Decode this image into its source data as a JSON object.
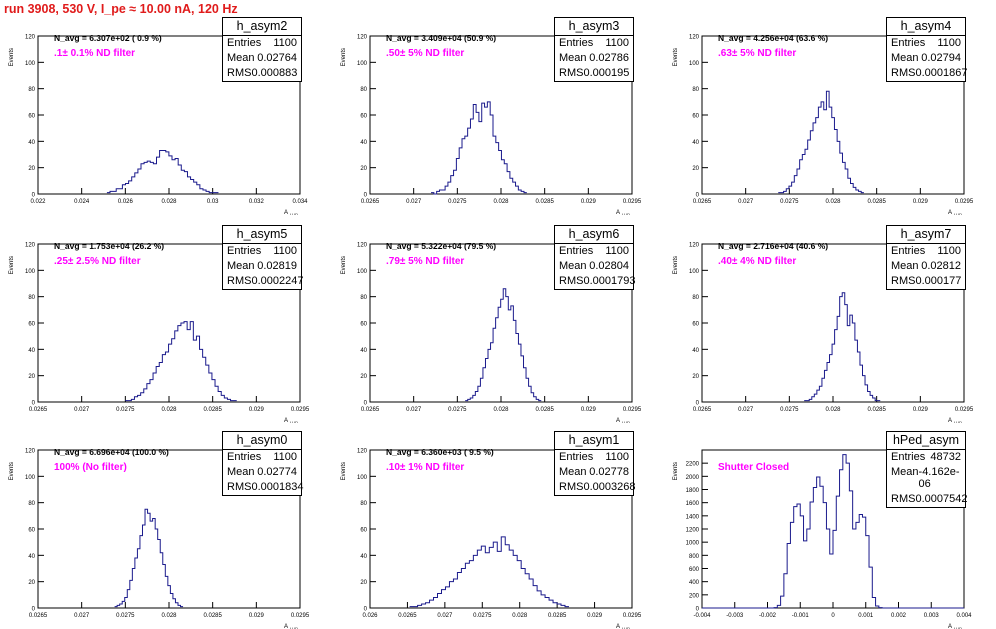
{
  "run_title": "run 3908,   530 V, I_pe ≈ 10.00 nA, 120 Hz",
  "colors": {
    "title": "#e01b1b",
    "annotation": "#ff00ff",
    "histogram": "#1a1a8c",
    "axis": "#000000"
  },
  "stat_labels": {
    "entries": "Entries",
    "mean": "Mean",
    "rms": "RMS"
  },
  "chart_data": [
    {
      "type": "bar",
      "name": "h_asym2",
      "xlabel": "A",
      "xlabel_sub": "LUD",
      "ylabel": "Events",
      "xlim": [
        0.022,
        0.034
      ],
      "ylim": [
        0,
        120
      ],
      "xticks": [
        "0.022",
        "0.024",
        "0.026",
        "0.028",
        "0.03",
        "0.032",
        "0.034"
      ],
      "yticks": [
        "0",
        "20",
        "40",
        "60",
        "80",
        "100",
        "120"
      ],
      "stats": {
        "entries": "1100",
        "mean": "0.02764",
        "rms": "0.000883"
      },
      "navg": "N_avg = 6.307e+02 ( 0.9 %)",
      "annotation": ".1± 0.1% ND filter",
      "peak_x": 0.02764,
      "peak_y": 35,
      "spread": 0.00088,
      "values": [
        1,
        2,
        2,
        4,
        4,
        7,
        8,
        10,
        13,
        16,
        19,
        23,
        24,
        25,
        24,
        23,
        28,
        33,
        33,
        32,
        29,
        26,
        27,
        22,
        18,
        17,
        13,
        11,
        9,
        7,
        4,
        3,
        2,
        1,
        1,
        1
      ]
    },
    {
      "type": "bar",
      "name": "h_asym3",
      "xlabel": "A",
      "xlabel_sub": "LUD",
      "ylabel": "Events",
      "xlim": [
        0.0265,
        0.0295
      ],
      "ylim": [
        0,
        120
      ],
      "xticks": [
        "0.0265",
        "0.027",
        "0.0275",
        "0.028",
        "0.0285",
        "0.029",
        "0.0295"
      ],
      "yticks": [
        "0",
        "20",
        "40",
        "60",
        "80",
        "100",
        "120"
      ],
      "stats": {
        "entries": "1100",
        "mean": "0.02786",
        "rms": "0.000195"
      },
      "navg": "N_avg = 3.409e+04 (50.9 %)",
      "annotation": ".50± 5% ND filter",
      "peak_x": 0.02786,
      "peak_y": 70,
      "spread": 0.0002,
      "values": [
        1,
        0,
        2,
        3,
        3,
        6,
        9,
        14,
        18,
        27,
        35,
        42,
        44,
        50,
        57,
        68,
        62,
        55,
        69,
        66,
        70,
        60,
        44,
        39,
        33,
        26,
        23,
        17,
        12,
        9,
        6,
        3,
        2,
        1
      ]
    },
    {
      "type": "bar",
      "name": "h_asym4",
      "xlabel": "A",
      "xlabel_sub": "LUD",
      "ylabel": "Events",
      "xlim": [
        0.0265,
        0.0295
      ],
      "ylim": [
        0,
        120
      ],
      "xticks": [
        "0.0265",
        "0.027",
        "0.0275",
        "0.028",
        "0.0285",
        "0.029",
        "0.0295"
      ],
      "yticks": [
        "0",
        "20",
        "40",
        "60",
        "80",
        "100",
        "120"
      ],
      "stats": {
        "entries": "1100",
        "mean": "0.02794",
        "rms": "0.0001867"
      },
      "navg": "N_avg = 4.256e+04 (63.6 %)",
      "annotation": ".63± 5% ND filter",
      "peak_x": 0.02794,
      "peak_y": 78,
      "spread": 0.00019,
      "values": [
        1,
        1,
        2,
        4,
        6,
        9,
        14,
        19,
        26,
        30,
        34,
        41,
        48,
        54,
        58,
        66,
        70,
        64,
        78,
        66,
        58,
        49,
        40,
        31,
        24,
        19,
        12,
        8,
        5,
        3,
        2,
        1
      ]
    },
    {
      "type": "bar",
      "name": "h_asym5",
      "xlabel": "A",
      "xlabel_sub": "LUD",
      "ylabel": "Events",
      "xlim": [
        0.0265,
        0.0295
      ],
      "ylim": [
        0,
        120
      ],
      "xticks": [
        "0.0265",
        "0.027",
        "0.0275",
        "0.028",
        "0.0285",
        "0.029",
        "0.0295"
      ],
      "yticks": [
        "0",
        "20",
        "40",
        "60",
        "80",
        "100",
        "120"
      ],
      "stats": {
        "entries": "1100",
        "mean": "0.02819",
        "rms": "0.0002247"
      },
      "navg": "N_avg = 1.753e+04 (26.2 %)",
      "annotation": ".25± 2.5% ND filter",
      "peak_x": 0.02819,
      "peak_y": 61,
      "spread": 0.00022,
      "values": [
        1,
        1,
        2,
        4,
        5,
        7,
        10,
        14,
        17,
        22,
        27,
        30,
        36,
        38,
        44,
        48,
        54,
        58,
        60,
        61,
        55,
        61,
        47,
        50,
        40,
        34,
        28,
        22,
        17,
        12,
        8,
        5,
        3,
        2,
        1,
        1
      ]
    },
    {
      "type": "bar",
      "name": "h_asym6",
      "xlabel": "A",
      "xlabel_sub": "LUD",
      "ylabel": "Events",
      "xlim": [
        0.0265,
        0.0295
      ],
      "ylim": [
        0,
        120
      ],
      "xticks": [
        "0.0265",
        "0.027",
        "0.0275",
        "0.028",
        "0.0285",
        "0.029",
        "0.0295"
      ],
      "yticks": [
        "0",
        "20",
        "40",
        "60",
        "80",
        "100",
        "120"
      ],
      "stats": {
        "entries": "1100",
        "mean": "0.02804",
        "rms": "0.0001793"
      },
      "navg": "N_avg = 5.322e+04 (79.5 %)",
      "annotation": ".79± 5% ND filter",
      "peak_x": 0.02804,
      "peak_y": 86,
      "spread": 0.00018,
      "values": [
        1,
        2,
        3,
        5,
        8,
        12,
        18,
        26,
        33,
        40,
        45,
        56,
        64,
        72,
        78,
        86,
        80,
        70,
        73,
        62,
        52,
        44,
        35,
        26,
        18,
        12,
        7,
        4,
        2,
        1
      ]
    },
    {
      "type": "bar",
      "name": "h_asym7",
      "xlabel": "A",
      "xlabel_sub": "LUD",
      "ylabel": "Events",
      "xlim": [
        0.0265,
        0.0295
      ],
      "ylim": [
        0,
        120
      ],
      "xticks": [
        "0.0265",
        "0.027",
        "0.0275",
        "0.028",
        "0.0285",
        "0.029",
        "0.0295"
      ],
      "yticks": [
        "0",
        "20",
        "40",
        "60",
        "80",
        "100",
        "120"
      ],
      "stats": {
        "entries": "1100",
        "mean": "0.02812",
        "rms": "0.000177"
      },
      "navg": "N_avg = 2.716e+04 (40.6 %)",
      "annotation": ".40± 4% ND filter",
      "peak_x": 0.02812,
      "peak_y": 83,
      "spread": 0.00018,
      "values": [
        1,
        1,
        2,
        4,
        6,
        9,
        12,
        18,
        24,
        30,
        36,
        44,
        55,
        65,
        80,
        83,
        74,
        58,
        66,
        60,
        47,
        38,
        28,
        20,
        13,
        8,
        5,
        3,
        1,
        1
      ]
    },
    {
      "type": "bar",
      "name": "h_asym0",
      "xlabel": "A",
      "xlabel_sub": "LUD",
      "ylabel": "Events",
      "xlim": [
        0.0265,
        0.0295
      ],
      "ylim": [
        0,
        120
      ],
      "xticks": [
        "0.0265",
        "0.027",
        "0.0275",
        "0.028",
        "0.0285",
        "0.029",
        "0.0295"
      ],
      "yticks": [
        "0",
        "20",
        "40",
        "60",
        "80",
        "100",
        "120"
      ],
      "stats": {
        "entries": "1100",
        "mean": "0.02774",
        "rms": "0.0001834"
      },
      "navg": "N_avg = 6.696e+04 (100.0 %)",
      "annotation": "100% (No filter)",
      "peak_x": 0.02774,
      "peak_y": 75,
      "spread": 0.00018,
      "values": [
        1,
        2,
        3,
        5,
        8,
        14,
        21,
        30,
        38,
        45,
        55,
        63,
        75,
        72,
        66,
        68,
        60,
        52,
        42,
        33,
        24,
        17,
        11,
        7,
        4,
        2,
        1
      ]
    },
    {
      "type": "bar",
      "name": "h_asym1",
      "xlabel": "A",
      "xlabel_sub": "LUD",
      "ylabel": "Events",
      "xlim": [
        0.026,
        0.0295
      ],
      "ylim": [
        0,
        120
      ],
      "xticks": [
        "0.026",
        "0.0265",
        "0.027",
        "0.0275",
        "0.028",
        "0.0285",
        "0.029",
        "0.0295"
      ],
      "yticks": [
        "0",
        "20",
        "40",
        "60",
        "80",
        "100",
        "120"
      ],
      "stats": {
        "entries": "1100",
        "mean": "0.02778",
        "rms": "0.0003268"
      },
      "navg": "N_avg = 6.360e+03 ( 9.5 %)",
      "annotation": ".10± 1% ND filter",
      "peak_x": 0.02778,
      "peak_y": 54,
      "spread": 0.00033,
      "values": [
        1,
        1,
        2,
        3,
        4,
        6,
        8,
        11,
        14,
        16,
        20,
        22,
        27,
        30,
        34,
        36,
        40,
        44,
        47,
        42,
        46,
        50,
        43,
        54,
        48,
        44,
        40,
        36,
        30,
        26,
        22,
        17,
        13,
        10,
        8,
        6,
        4,
        3,
        2,
        1
      ]
    },
    {
      "type": "bar",
      "name": "hPed_asym",
      "xlabel": "A",
      "xlabel_sub": "LUD",
      "ylabel": "Events",
      "xlim": [
        -0.004,
        0.004
      ],
      "ylim": [
        0,
        2400
      ],
      "xticks": [
        "-0.004",
        "-0.003",
        "-0.002",
        "-0.001",
        "0",
        "0.001",
        "0.002",
        "0.003",
        "0.004"
      ],
      "yticks": [
        "0",
        "200",
        "400",
        "600",
        "800",
        "1000",
        "1200",
        "1400",
        "1600",
        "1800",
        "2000",
        "2200"
      ],
      "stats": {
        "entries": "48732",
        "mean": "-4.162e-06",
        "rms": "0.0007542"
      },
      "navg": "",
      "annotation": "Shutter Closed",
      "values": [
        0,
        0,
        0,
        0,
        0,
        0,
        0,
        0,
        0,
        0,
        0,
        0,
        0,
        0,
        0,
        0,
        0,
        0,
        0,
        0,
        0,
        0,
        5,
        40,
        180,
        520,
        980,
        1300,
        1540,
        1580,
        1400,
        1020,
        1200,
        1610,
        1830,
        1990,
        1850,
        1600,
        1200,
        820,
        1180,
        1700,
        2100,
        2330,
        2200,
        1780,
        1200,
        1300,
        1420,
        1380,
        1100,
        620,
        160,
        30,
        5,
        0,
        0,
        0,
        0,
        0,
        0,
        0,
        0,
        0,
        0,
        0,
        0,
        0,
        0,
        0,
        0,
        0,
        0,
        0,
        0,
        0,
        0,
        0,
        0,
        0
      ],
      "values_xstart": -0.004,
      "values_binwidth": 0.0001
    }
  ]
}
